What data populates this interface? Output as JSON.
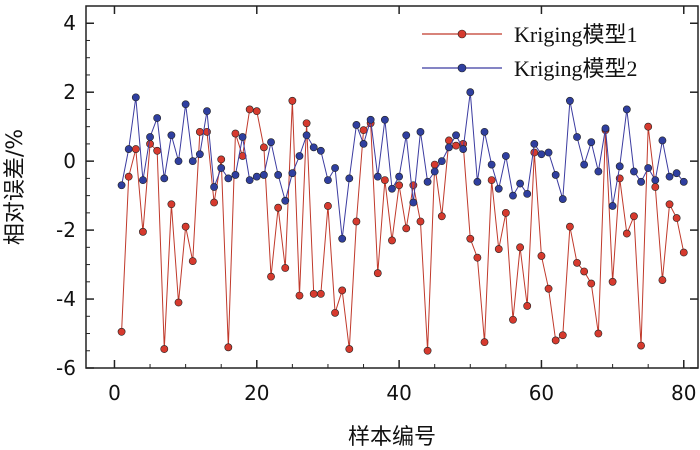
{
  "chart_data": {
    "type": "line",
    "title": "",
    "xlabel": "样本编号",
    "ylabel": "相对误差/%",
    "xlim": [
      -4,
      82
    ],
    "ylim": [
      -6,
      4.5
    ],
    "xticks": [
      "0",
      "20",
      "40",
      "60",
      "80"
    ],
    "yticks": [
      "-6",
      "-4",
      "-2",
      "0",
      "2",
      "4"
    ],
    "legend_position": "top-right",
    "series": [
      {
        "name": "Kriging模型1",
        "color": "#c0392b",
        "marker_color": "#d63a2e",
        "values": [
          -4.95,
          -0.45,
          0.35,
          -2.05,
          0.5,
          0.3,
          -5.45,
          -1.25,
          -4.1,
          -1.9,
          -2.9,
          0.85,
          0.85,
          -1.2,
          0.05,
          -5.4,
          0.8,
          0.15,
          1.5,
          1.45,
          0.4,
          -3.35,
          -1.35,
          -3.1,
          1.75,
          -3.9,
          1.1,
          -3.85,
          -3.85,
          -1.3,
          -4.4,
          -3.75,
          -5.45,
          -1.75,
          0.9,
          1.1,
          -3.25,
          -0.55,
          -2.3,
          -0.7,
          -1.95,
          -0.7,
          -1.75,
          -5.5,
          -0.1,
          -1.6,
          0.6,
          0.45,
          0.5,
          -2.25,
          -2.8,
          -5.25,
          -0.55,
          -2.55,
          -1.5,
          -4.6,
          -2.5,
          -4.2,
          0.25,
          -2.75,
          -3.7,
          -5.2,
          -5.05,
          -1.9,
          -2.95,
          -3.2,
          -3.55,
          -5.0,
          0.9,
          -3.5,
          -0.5,
          -2.1,
          -1.6,
          -5.35,
          1.0,
          -0.75,
          -3.45,
          -1.25,
          -1.65,
          -2.65
        ]
      },
      {
        "name": "Kriging模型2",
        "color": "#3b3ba0",
        "marker_color": "#2f3f9f",
        "values": [
          -0.7,
          0.35,
          1.85,
          -0.55,
          0.7,
          1.25,
          -0.5,
          0.75,
          0.0,
          1.65,
          0.0,
          0.2,
          1.45,
          -0.75,
          -0.2,
          -0.5,
          -0.4,
          0.7,
          -0.55,
          -0.45,
          -0.4,
          0.55,
          -0.4,
          -1.15,
          -0.35,
          0.15,
          0.75,
          0.4,
          0.3,
          -0.55,
          -0.2,
          -2.25,
          -0.5,
          1.05,
          0.5,
          1.2,
          -0.45,
          1.2,
          -0.8,
          -0.45,
          0.75,
          -1.2,
          0.85,
          -0.6,
          -0.3,
          0.0,
          0.4,
          0.75,
          0.35,
          2.0,
          -0.6,
          0.85,
          -0.1,
          -0.8,
          0.15,
          -1.0,
          -0.65,
          -0.95,
          0.5,
          0.2,
          0.25,
          -0.4,
          -1.1,
          1.75,
          0.7,
          -0.1,
          0.55,
          -0.3,
          0.95,
          -1.3,
          -0.15,
          1.5,
          -0.3,
          -0.6,
          -0.2,
          -0.55,
          0.6,
          -0.45,
          -0.35,
          -0.6
        ]
      }
    ]
  }
}
